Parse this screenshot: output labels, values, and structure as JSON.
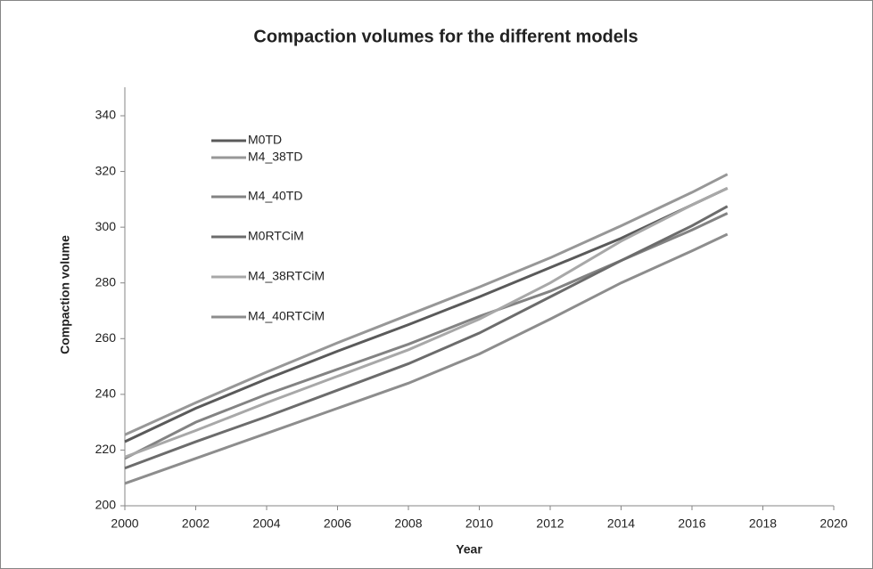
{
  "chart_data": {
    "type": "line",
    "title": "Compaction volumes for the different models",
    "x_label": "Year",
    "y_label": "Compaction volume",
    "x": [
      2000,
      2002,
      2004,
      2006,
      2008,
      2010,
      2012,
      2014,
      2016,
      2017
    ],
    "xlim": [
      2000,
      2020
    ],
    "xticks": [
      2000,
      2002,
      2004,
      2006,
      2008,
      2010,
      2012,
      2014,
      2016,
      2018,
      2020
    ],
    "ylim": [
      200,
      340
    ],
    "yticks": [
      200,
      220,
      240,
      260,
      280,
      300,
      320,
      340
    ],
    "grid": false,
    "legend": "upper left",
    "series": [
      {
        "name": "M0TD",
        "color": "#5a5a5a",
        "values": [
          223,
          235,
          245.5,
          255.5,
          265,
          275,
          285.5,
          296,
          308,
          314
        ]
      },
      {
        "name": "M4_38TD",
        "color": "#979797",
        "values": [
          225.5,
          237,
          248,
          258.5,
          268.5,
          278.5,
          289,
          300.5,
          312.5,
          319
        ]
      },
      {
        "name": "M4_40TD",
        "color": "#838383",
        "values": [
          217,
          230,
          240,
          249,
          258,
          268,
          277,
          288,
          299,
          305
        ]
      },
      {
        "name": "M0RTCiM",
        "color": "#6c6c6c",
        "values": [
          213.5,
          223,
          232,
          241.5,
          251,
          262,
          275,
          288,
          300.5,
          307.5
        ]
      },
      {
        "name": "M4_38RTCiM",
        "color": "#a8a8a8",
        "values": [
          217.5,
          227,
          237,
          246.5,
          256,
          267,
          280,
          295,
          308,
          314
        ]
      },
      {
        "name": "M4_40RTCiM",
        "color": "#8d8d8d",
        "values": [
          208,
          217,
          226,
          235,
          244,
          254.5,
          267,
          280,
          291.5,
          297.5
        ]
      }
    ]
  }
}
